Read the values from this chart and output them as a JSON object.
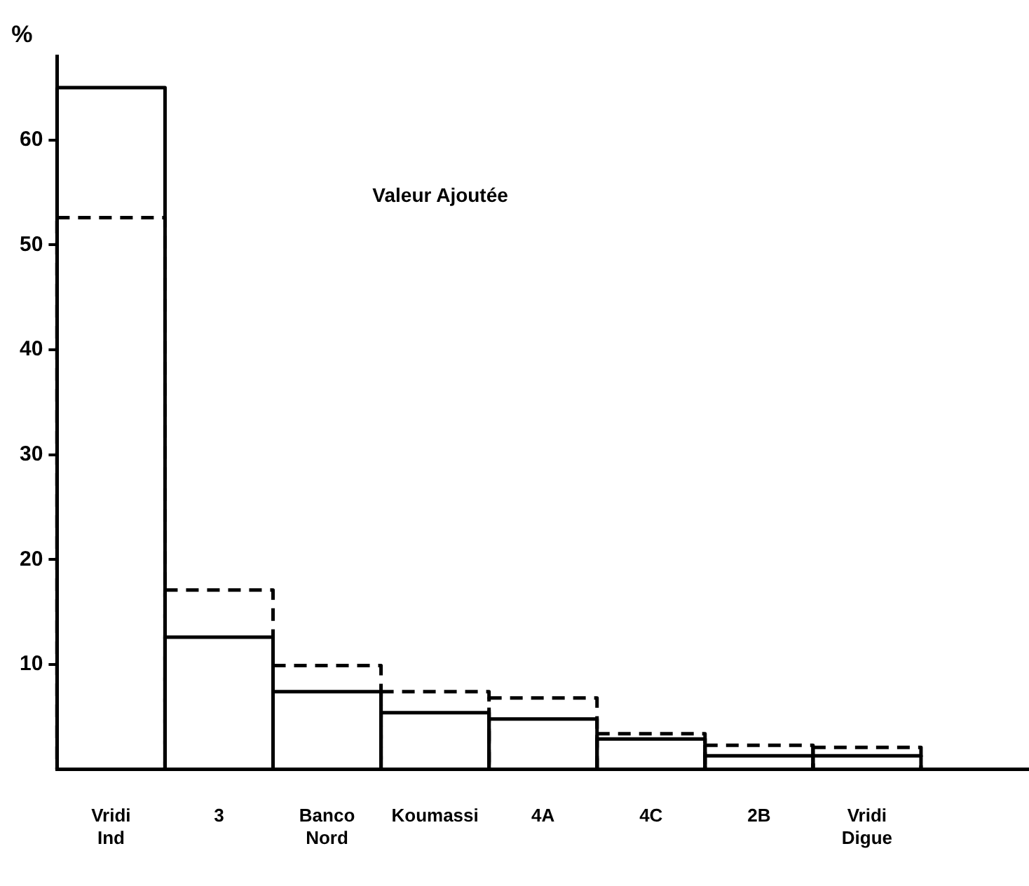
{
  "chart_data": {
    "type": "bar",
    "title": "Valeur Ajoutée",
    "ylabel": "%",
    "categories": [
      "Vridi Ind",
      "3",
      "Banco Nord",
      "Koumassi",
      "4A",
      "4C",
      "2B",
      "Vridi Digue",
      null
    ],
    "series": [
      {
        "color": "#000000",
        "line_style": "solid",
        "values": [
          65.0,
          12.6,
          7.4,
          5.4,
          4.8,
          2.9,
          1.3,
          1.3,
          null
        ]
      },
      {
        "color": "#000000",
        "line_style": "dashed",
        "values": [
          52.6,
          17.1,
          9.9,
          7.4,
          6.8,
          3.4,
          2.3,
          2.1,
          null
        ]
      }
    ],
    "ylim": [
      0,
      68
    ],
    "yticks": [
      10,
      20,
      30,
      40,
      50,
      60
    ],
    "grid": false,
    "legend": false
  }
}
